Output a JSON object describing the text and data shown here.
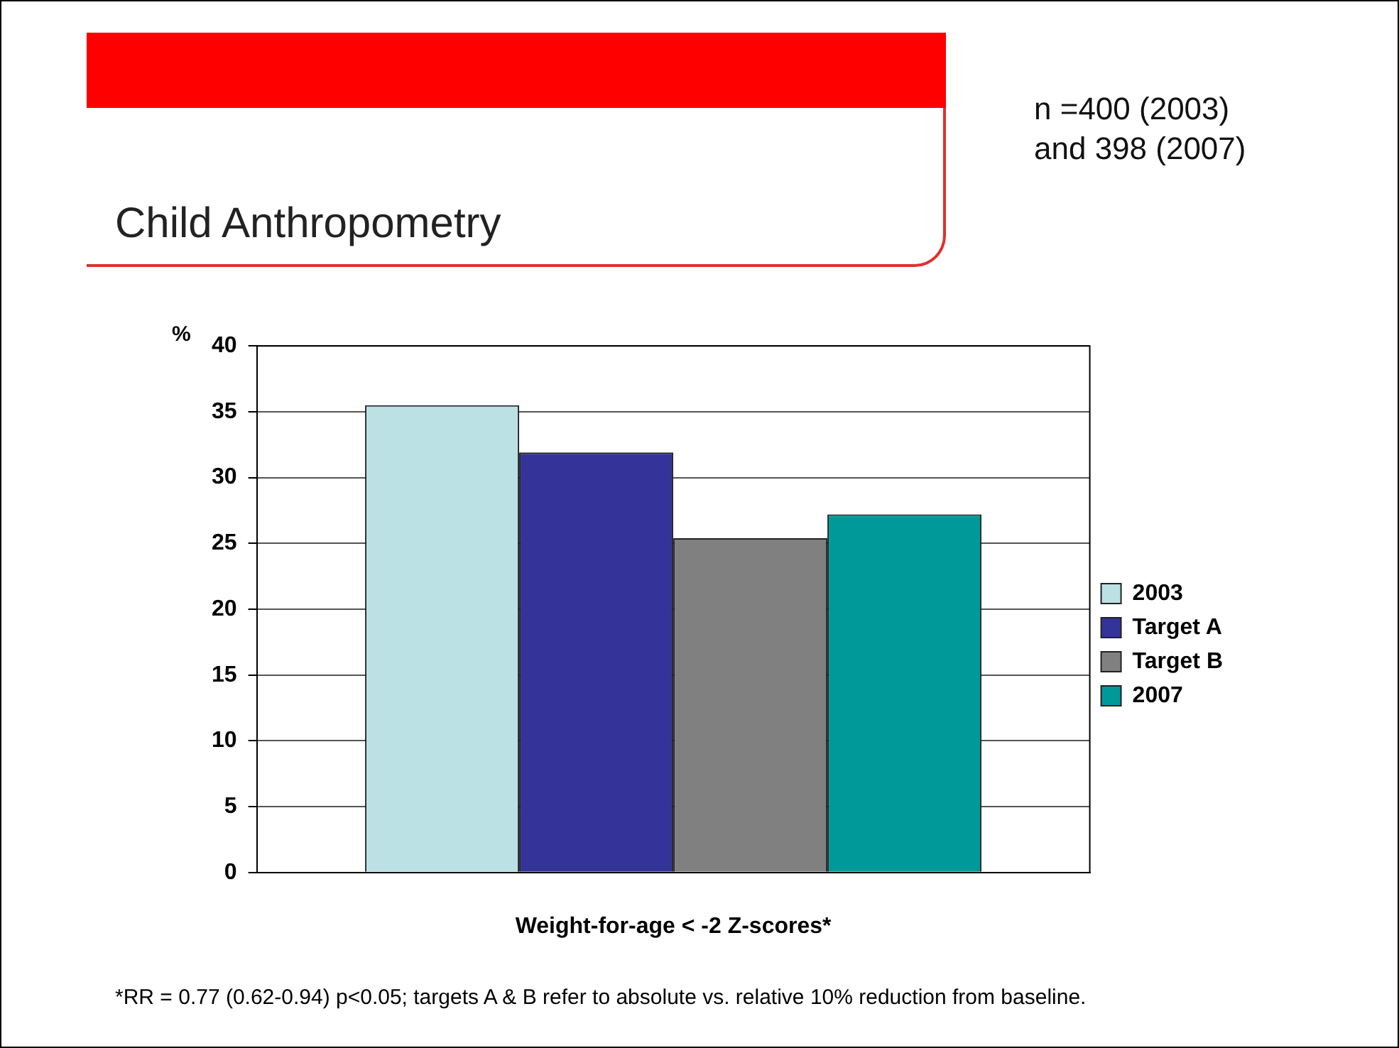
{
  "chart_data": {
    "type": "bar",
    "title": "Child Anthropometry",
    "ylabel": "%",
    "xlabel": "Weight-for-age < -2 Z-scores*",
    "categories": [
      null
    ],
    "series": [
      {
        "name": "2003",
        "color": "#bce1e4",
        "values": [
          35.5
        ]
      },
      {
        "name": "Target A",
        "color": "#333399",
        "values": [
          31.9
        ]
      },
      {
        "name": "Target B",
        "color": "#808080",
        "values": [
          25.4
        ]
      },
      {
        "name": "2007",
        "color": "#009999",
        "values": [
          27.2
        ]
      }
    ],
    "ylim": [
      0,
      40
    ],
    "yticks": [
      0,
      5,
      10,
      15,
      20,
      25,
      30,
      35,
      40
    ],
    "grid": "y",
    "legend": "right",
    "annotations": [
      "n =400 (2003)\nand 398 (2007)",
      "*RR = 0.77 (0.62-0.94) p<0.05; targets A & B refer to absolute vs. relative 10% reduction from baseline."
    ]
  }
}
